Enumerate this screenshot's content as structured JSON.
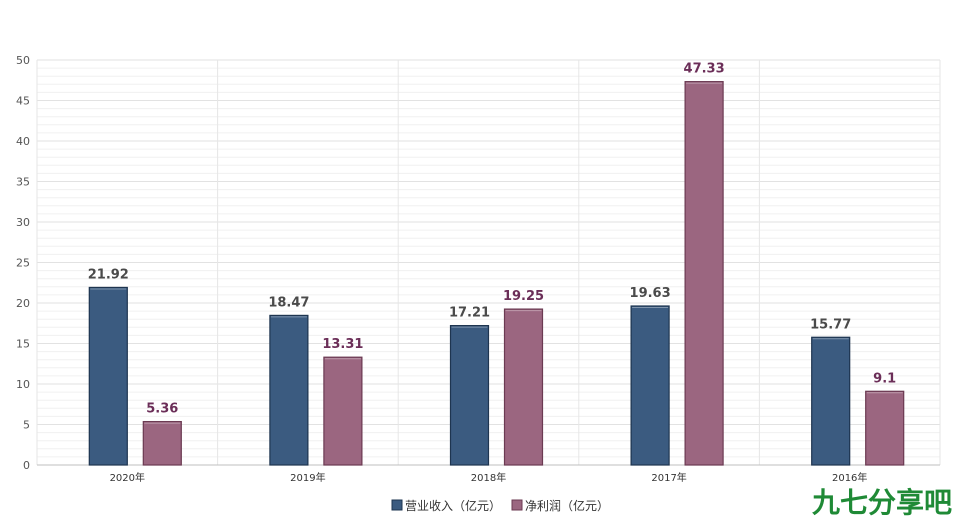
{
  "chart_data": {
    "type": "bar",
    "categories": [
      "2020年",
      "2019年",
      "2018年",
      "2017年",
      "2016年"
    ],
    "series": [
      {
        "name": "营业收入（亿元）",
        "values": [
          21.92,
          18.47,
          17.21,
          19.63,
          15.77
        ],
        "color": "#3b5b80"
      },
      {
        "name": "净利润（亿元）",
        "values": [
          5.36,
          13.31,
          19.25,
          47.33,
          9.1
        ],
        "color": "#9b6680"
      }
    ],
    "value_labels": {
      "revenue": [
        "21.92",
        "18.47",
        "17.21",
        "19.63",
        "15.77"
      ],
      "net_profit": [
        "5.36",
        "13.31",
        "19.25",
        "47.33",
        "9.1"
      ]
    },
    "yticks": [
      "0",
      "5",
      "10",
      "15",
      "20",
      "25",
      "30",
      "35",
      "40",
      "45",
      "50"
    ],
    "ylim": [
      0,
      50
    ],
    "grid": true,
    "legend": "bottom-center",
    "label_colors": {
      "revenue": "#4a4a4a",
      "net_profit": "#6b2e58"
    }
  },
  "watermark": {
    "text": "九七分享吧",
    "color": "#1f8a36"
  }
}
